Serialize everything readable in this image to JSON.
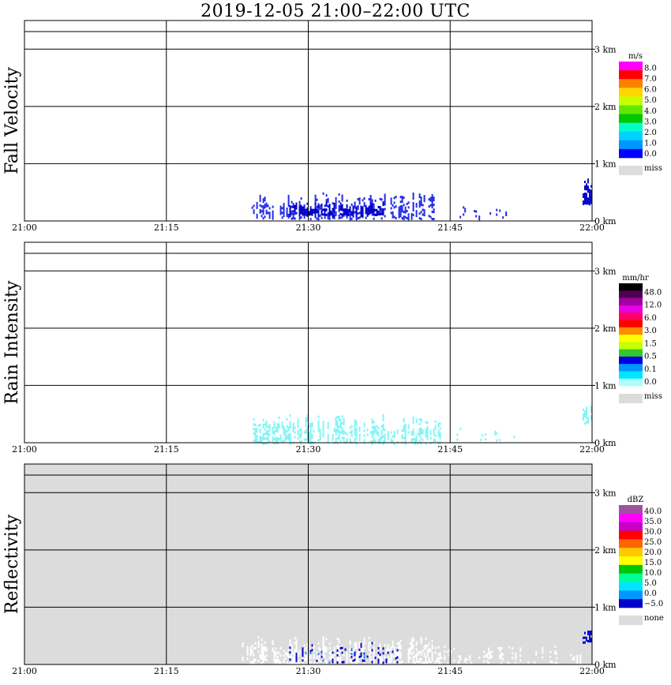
{
  "title": "2019-12-05   21:00–22:00 UTC",
  "chart_data": [
    {
      "type": "heatmap",
      "name": "fall-velocity",
      "ylabel": "Fall Velocity",
      "xlim": [
        "21:00",
        "22:00"
      ],
      "ylim_km": [
        0,
        3.5
      ],
      "x_tick_labels": [
        "21:00",
        "21:15",
        "21:30",
        "21:45",
        "22:00"
      ],
      "y_tick_labels": [
        "0 km",
        "1 km",
        "2 km",
        "3 km"
      ],
      "background": "#ffffff",
      "grid": true,
      "legend": {
        "unit": "m/s",
        "labels": [
          "8.0",
          "7.0",
          "6.0",
          "5.0",
          "4.0",
          "3.0",
          "2.0",
          "1.0",
          "0.0"
        ],
        "colors": [
          "#ff00ff",
          "#ff0000",
          "#ff8000",
          "#ffd700",
          "#c8ff00",
          "#64e600",
          "#00c800",
          "#00ffc8",
          "#00d2ff",
          "#0096ff",
          "#0000ff"
        ],
        "miss_label": "miss",
        "miss_color": "#dcdcdc"
      },
      "echo_regions": [
        {
          "t_start": "21:24",
          "t_end": "21:44",
          "h_min_km": 0.05,
          "h_max_km": 0.5,
          "color": "#1e28e6",
          "density": 0.55
        },
        {
          "t_start": "21:28",
          "t_end": "21:38",
          "h_min_km": 0.1,
          "h_max_km": 0.35,
          "color": "#0000c8",
          "density": 0.7
        },
        {
          "t_start": "21:46",
          "t_end": "21:51",
          "h_min_km": 0.05,
          "h_max_km": 0.3,
          "color": "#1e28e6",
          "density": 0.2
        },
        {
          "t_start": "21:59",
          "t_end": "22:00",
          "h_min_km": 0.3,
          "h_max_km": 0.75,
          "color": "#0000c8",
          "density": 0.8
        }
      ]
    },
    {
      "type": "heatmap",
      "name": "rain-intensity",
      "ylabel": "Rain Intensity",
      "xlim": [
        "21:00",
        "22:00"
      ],
      "ylim_km": [
        0,
        3.5
      ],
      "x_tick_labels": [
        "21:00",
        "21:15",
        "21:30",
        "21:45",
        "22:00"
      ],
      "y_tick_labels": [
        "0 km",
        "1 km",
        "2 km",
        "3 km"
      ],
      "background": "#ffffff",
      "grid": true,
      "legend": {
        "unit": "mm/hr",
        "labels": [
          "48.0",
          "12.0",
          "6.0",
          "3.0",
          "1.5",
          "0.5",
          "0.1",
          "0.0"
        ],
        "colors": [
          "#000000",
          "#500050",
          "#a000a0",
          "#e600e6",
          "#ff0064",
          "#ff0000",
          "#ff8c00",
          "#ffff00",
          "#c8ff00",
          "#32c832",
          "#0000e6",
          "#0096ff",
          "#00e6ff",
          "#aaffff"
        ],
        "miss_label": "miss",
        "miss_color": "#dcdcdc"
      },
      "echo_regions": [
        {
          "t_start": "21:24",
          "t_end": "21:44",
          "h_min_km": 0.0,
          "h_max_km": 0.5,
          "color": "#7ff5f5",
          "density": 0.6
        },
        {
          "t_start": "21:45",
          "t_end": "21:52",
          "h_min_km": 0.05,
          "h_max_km": 0.3,
          "color": "#7ff5f5",
          "density": 0.25
        },
        {
          "t_start": "21:59",
          "t_end": "22:00",
          "h_min_km": 0.35,
          "h_max_km": 0.7,
          "color": "#7ff5f5",
          "density": 0.8
        }
      ]
    },
    {
      "type": "heatmap",
      "name": "reflectivity",
      "ylabel": "Reflectivity",
      "xlim": [
        "21:00",
        "22:00"
      ],
      "ylim_km": [
        0,
        3.5
      ],
      "x_tick_labels": [
        "21:00",
        "21:15",
        "21:30",
        "21:45",
        "22:00"
      ],
      "y_tick_labels": [
        "0 km",
        "1 km",
        "2 km",
        "3 km"
      ],
      "background": "#dcdcdc",
      "grid": true,
      "legend": {
        "unit": "dBZ",
        "labels": [
          "40.0",
          "35.0",
          "30.0",
          "25.0",
          "20.0",
          "15.0",
          "10.0",
          "5.0",
          "0.0",
          "−5.0"
        ],
        "colors": [
          "#a050a0",
          "#ff00ff",
          "#c800c8",
          "#ff0000",
          "#ff6400",
          "#ffc800",
          "#ffff00",
          "#00c800",
          "#00ff96",
          "#00e6ff",
          "#0096ff",
          "#0000c8"
        ],
        "miss_label": "none",
        "miss_color": "#dcdcdc"
      },
      "echo_regions": [
        {
          "t_start": "21:23",
          "t_end": "21:44",
          "h_min_km": 0.0,
          "h_max_km": 0.5,
          "color": "#ffffff",
          "density": 0.6
        },
        {
          "t_start": "21:44",
          "t_end": "21:59",
          "h_min_km": 0.0,
          "h_max_km": 0.35,
          "color": "#ffffff",
          "density": 0.35
        },
        {
          "t_start": "21:28",
          "t_end": "21:40",
          "h_min_km": 0.05,
          "h_max_km": 0.4,
          "color": "#0000c8",
          "density": 0.25
        },
        {
          "t_start": "21:29",
          "t_end": "21:36",
          "h_min_km": 0.05,
          "h_max_km": 0.3,
          "color": "#1e90ff",
          "density": 0.15
        },
        {
          "t_start": "21:59",
          "t_end": "22:00",
          "h_min_km": 0.4,
          "h_max_km": 0.6,
          "color": "#0000c8",
          "density": 0.8
        }
      ]
    }
  ]
}
